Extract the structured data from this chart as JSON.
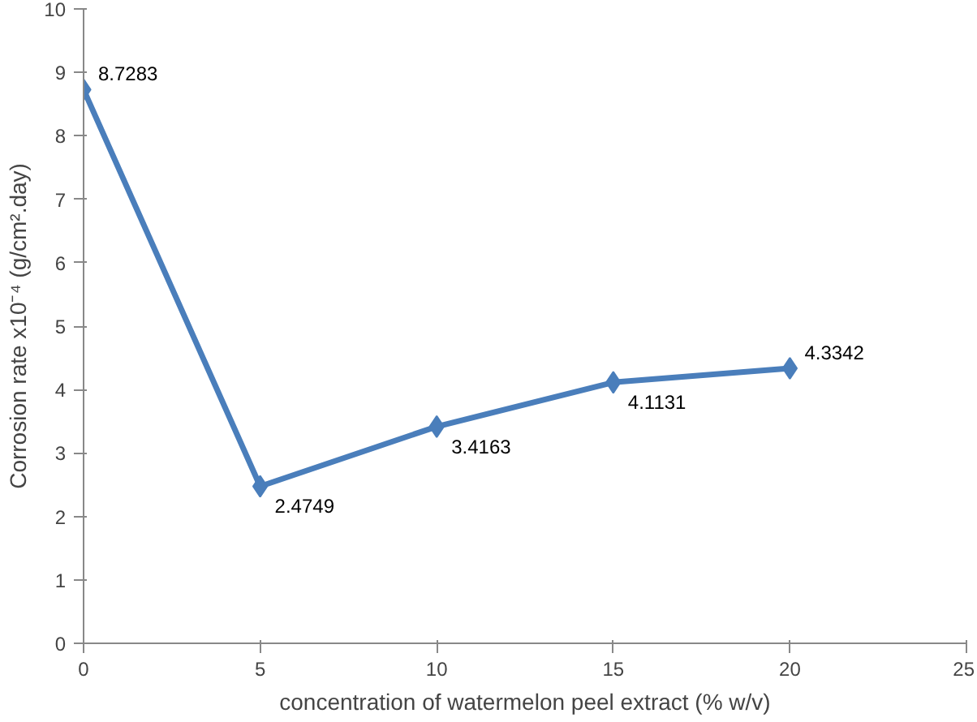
{
  "chart_data": {
    "type": "line",
    "xlabel": "concentration of watermelon peel extract (% w/v)",
    "ylabel": "Corrosion rate x10⁻⁴ (g/cm².day)",
    "x": [
      0,
      5,
      10,
      15,
      20
    ],
    "series": [
      {
        "color": "#4a7ebb",
        "values": [
          8.7283,
          2.4749,
          3.4163,
          4.1131,
          4.3342
        ]
      }
    ],
    "xlim": [
      0,
      25
    ],
    "xticks": [
      0,
      5,
      10,
      15,
      20,
      25
    ],
    "ylim": [
      0,
      10
    ],
    "yticks": [
      0,
      1,
      2,
      3,
      4,
      5,
      6,
      7,
      8,
      9,
      10
    ],
    "data_labels": true,
    "marker": "diamond",
    "line_style": "solid",
    "grid": false
  }
}
